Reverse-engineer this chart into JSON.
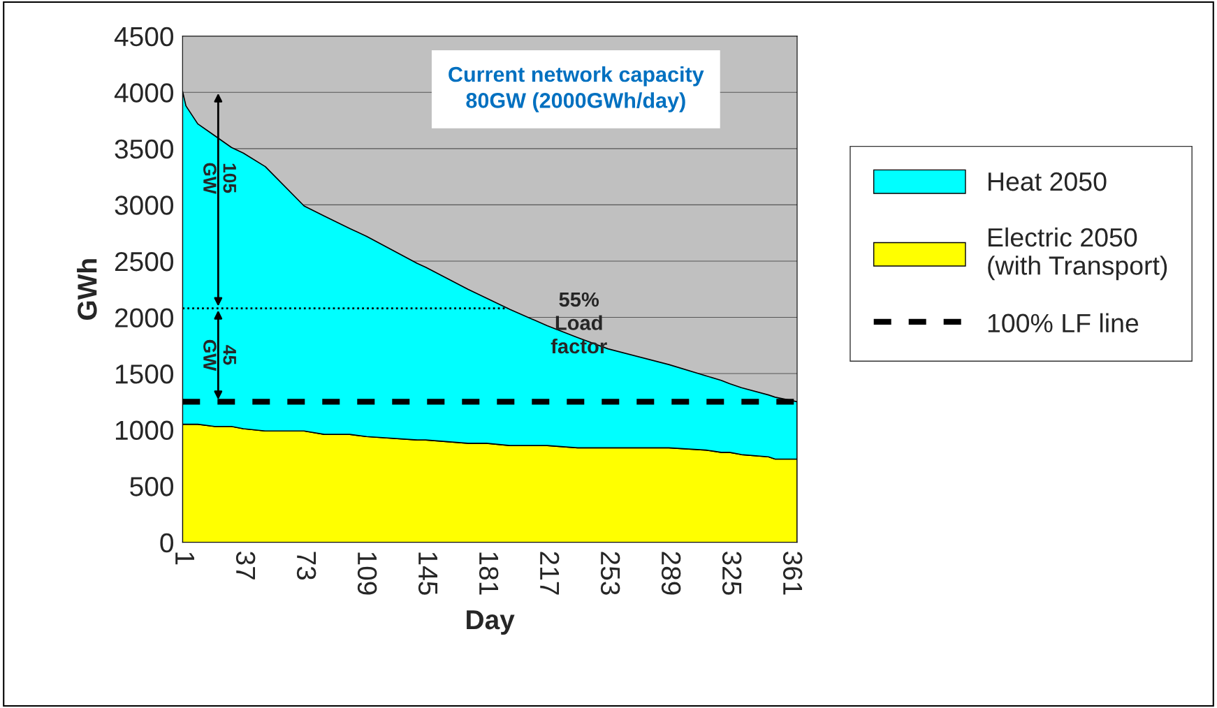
{
  "chart_data": {
    "type": "area",
    "stacked": true,
    "xlabel": "Day",
    "ylabel": "GWh",
    "x": [
      1,
      3,
      10,
      20,
      30,
      37,
      50,
      73,
      85,
      100,
      110,
      140,
      145,
      170,
      181,
      195,
      217,
      235,
      253,
      289,
      311,
      320,
      325,
      332,
      348,
      352,
      365
    ],
    "series": [
      {
        "name": "Electric 2050\n(with Transport)",
        "color": "#ffff00",
        "values": [
          1050,
          1050,
          1050,
          1030,
          1030,
          1010,
          990,
          990,
          960,
          960,
          940,
          910,
          910,
          880,
          880,
          860,
          860,
          840,
          840,
          840,
          820,
          800,
          800,
          780,
          760,
          740,
          740
        ]
      },
      {
        "name": "Heat 2050",
        "color": "#00ffff",
        "values": [
          2960,
          2830,
          2670,
          2585,
          2480,
          2450,
          2350,
          2000,
          1940,
          1830,
          1780,
          1570,
          1535,
          1370,
          1290,
          1210,
          1065,
          980,
          880,
          740,
          660,
          640,
          610,
          595,
          550,
          550,
          510
        ]
      }
    ],
    "xlim": [
      1,
      365
    ],
    "xticks": [
      1,
      37,
      73,
      109,
      145,
      181,
      217,
      253,
      289,
      325,
      361
    ],
    "ylim": [
      0,
      4500
    ],
    "yticks": [
      0,
      500,
      1000,
      1500,
      2000,
      2500,
      3000,
      3500,
      4000,
      4500
    ],
    "grid": "y",
    "legend": "right",
    "ref_lines": [
      {
        "axis": "y",
        "value": 1250,
        "label": "100% LF line",
        "color": "#000000",
        "line_style": "dashed"
      },
      {
        "axis": "y",
        "value": 2080,
        "color": "#000000",
        "line_style": "dotted"
      }
    ],
    "annotations": [
      "Current network capacity\n80GW (2000GWh/day)",
      "105\nGW",
      "45\nGW",
      "55%\nLoad\nfactor"
    ]
  }
}
